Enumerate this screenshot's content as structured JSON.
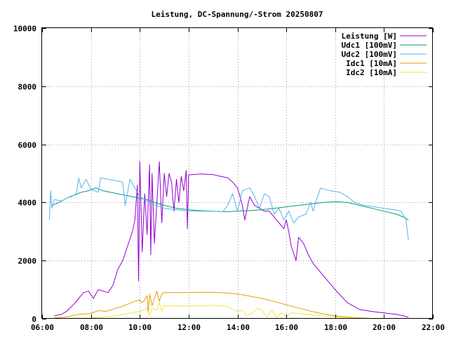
{
  "chart_data": {
    "type": "line",
    "title": "Leistung, DC-Spannung/-Strom 20250807",
    "xlim": [
      6.0,
      22.0
    ],
    "ylim": [
      0,
      10000
    ],
    "xticks": [
      {
        "value": 6,
        "label": "06:00"
      },
      {
        "value": 8,
        "label": "08:00"
      },
      {
        "value": 10,
        "label": "10:00"
      },
      {
        "value": 12,
        "label": "12:00"
      },
      {
        "value": 14,
        "label": "14:00"
      },
      {
        "value": 16,
        "label": "16:00"
      },
      {
        "value": 18,
        "label": "18:00"
      },
      {
        "value": 20,
        "label": "20:00"
      },
      {
        "value": 22,
        "label": "22:00"
      }
    ],
    "yticks": [
      {
        "value": 0,
        "label": "0"
      },
      {
        "value": 2000,
        "label": "2000"
      },
      {
        "value": 4000,
        "label": "4000"
      },
      {
        "value": 6000,
        "label": "6000"
      },
      {
        "value": 8000,
        "label": "8000"
      },
      {
        "value": 10000,
        "label": "10000"
      }
    ],
    "grid": true,
    "legend_position": "top-right",
    "series": [
      {
        "name": "Leistung [W]",
        "color": "#9400d3",
        "points": [
          [
            6.5,
            100
          ],
          [
            6.8,
            150
          ],
          [
            7.0,
            250
          ],
          [
            7.3,
            500
          ],
          [
            7.5,
            700
          ],
          [
            7.7,
            900
          ],
          [
            7.9,
            950
          ],
          [
            8.1,
            700
          ],
          [
            8.3,
            1000
          ],
          [
            8.5,
            950
          ],
          [
            8.7,
            900
          ],
          [
            8.9,
            1150
          ],
          [
            9.1,
            1700
          ],
          [
            9.3,
            2000
          ],
          [
            9.5,
            2500
          ],
          [
            9.7,
            3000
          ],
          [
            9.8,
            3400
          ],
          [
            9.9,
            4600
          ],
          [
            9.95,
            1300
          ],
          [
            10.0,
            5400
          ],
          [
            10.1,
            2300
          ],
          [
            10.2,
            4300
          ],
          [
            10.3,
            2900
          ],
          [
            10.4,
            5300
          ],
          [
            10.45,
            2200
          ],
          [
            10.5,
            5000
          ],
          [
            10.6,
            2600
          ],
          [
            10.7,
            4000
          ],
          [
            10.8,
            5400
          ],
          [
            10.9,
            3300
          ],
          [
            11.0,
            5000
          ],
          [
            11.1,
            4200
          ],
          [
            11.2,
            5000
          ],
          [
            11.3,
            4700
          ],
          [
            11.4,
            3700
          ],
          [
            11.5,
            4800
          ],
          [
            11.6,
            4000
          ],
          [
            11.7,
            4900
          ],
          [
            11.8,
            4400
          ],
          [
            11.9,
            5100
          ],
          [
            11.95,
            3100
          ],
          [
            12.0,
            4950
          ],
          [
            12.5,
            4980
          ],
          [
            13.0,
            4960
          ],
          [
            13.3,
            4900
          ],
          [
            13.6,
            4850
          ],
          [
            13.8,
            4700
          ],
          [
            14.0,
            4500
          ],
          [
            14.2,
            3900
          ],
          [
            14.3,
            3400
          ],
          [
            14.5,
            4200
          ],
          [
            14.7,
            3900
          ],
          [
            14.9,
            3800
          ],
          [
            15.1,
            3700
          ],
          [
            15.3,
            3700
          ],
          [
            15.5,
            3500
          ],
          [
            15.7,
            3300
          ],
          [
            15.9,
            3100
          ],
          [
            16.0,
            3400
          ],
          [
            16.1,
            3000
          ],
          [
            16.2,
            2500
          ],
          [
            16.4,
            2000
          ],
          [
            16.5,
            2800
          ],
          [
            16.7,
            2600
          ],
          [
            16.9,
            2200
          ],
          [
            17.1,
            1900
          ],
          [
            17.5,
            1500
          ],
          [
            18.0,
            1000
          ],
          [
            18.5,
            550
          ],
          [
            19.0,
            320
          ],
          [
            19.5,
            250
          ],
          [
            20.0,
            200
          ],
          [
            20.5,
            150
          ],
          [
            20.8,
            100
          ],
          [
            21.0,
            50
          ]
        ]
      },
      {
        "name": "Udc1 [100mV]",
        "color": "#009e73",
        "points": [
          [
            6.4,
            3900
          ],
          [
            6.7,
            4000
          ],
          [
            7.0,
            4150
          ],
          [
            7.3,
            4250
          ],
          [
            7.6,
            4350
          ],
          [
            7.9,
            4400
          ],
          [
            8.2,
            4500
          ],
          [
            8.5,
            4400
          ],
          [
            8.8,
            4350
          ],
          [
            9.1,
            4300
          ],
          [
            9.4,
            4250
          ],
          [
            9.7,
            4200
          ],
          [
            10.0,
            4150
          ],
          [
            10.3,
            4100
          ],
          [
            10.6,
            4000
          ],
          [
            11.0,
            3900
          ],
          [
            11.5,
            3800
          ],
          [
            12.0,
            3750
          ],
          [
            12.5,
            3720
          ],
          [
            13.0,
            3700
          ],
          [
            13.5,
            3680
          ],
          [
            14.0,
            3700
          ],
          [
            14.5,
            3720
          ],
          [
            15.0,
            3750
          ],
          [
            15.5,
            3800
          ],
          [
            16.0,
            3850
          ],
          [
            16.5,
            3900
          ],
          [
            17.0,
            3950
          ],
          [
            17.5,
            4000
          ],
          [
            18.0,
            4030
          ],
          [
            18.5,
            4000
          ],
          [
            19.0,
            3900
          ],
          [
            19.5,
            3800
          ],
          [
            20.0,
            3700
          ],
          [
            20.5,
            3600
          ],
          [
            20.8,
            3500
          ],
          [
            21.0,
            3400
          ]
        ]
      },
      {
        "name": "Udc2 [100mV]",
        "color": "#56b4e9",
        "points": [
          [
            6.3,
            3400
          ],
          [
            6.35,
            4400
          ],
          [
            6.4,
            3800
          ],
          [
            6.5,
            4100
          ],
          [
            6.8,
            4050
          ],
          [
            7.0,
            4150
          ],
          [
            7.2,
            4200
          ],
          [
            7.4,
            4300
          ],
          [
            7.5,
            4850
          ],
          [
            7.6,
            4500
          ],
          [
            7.8,
            4800
          ],
          [
            8.0,
            4450
          ],
          [
            8.3,
            4350
          ],
          [
            8.4,
            4850
          ],
          [
            8.7,
            4800
          ],
          [
            9.0,
            4750
          ],
          [
            9.3,
            4700
          ],
          [
            9.4,
            3900
          ],
          [
            9.6,
            4800
          ],
          [
            10.0,
            4200
          ],
          [
            10.5,
            3950
          ],
          [
            11.0,
            3800
          ],
          [
            11.5,
            3750
          ],
          [
            12.0,
            3700
          ],
          [
            12.5,
            3700
          ],
          [
            13.0,
            3700
          ],
          [
            13.4,
            3680
          ],
          [
            13.6,
            3900
          ],
          [
            13.8,
            4300
          ],
          [
            14.0,
            3700
          ],
          [
            14.2,
            4400
          ],
          [
            14.5,
            4500
          ],
          [
            14.7,
            4200
          ],
          [
            14.9,
            3800
          ],
          [
            15.1,
            4300
          ],
          [
            15.3,
            4200
          ],
          [
            15.5,
            3600
          ],
          [
            15.7,
            3800
          ],
          [
            15.9,
            3400
          ],
          [
            16.1,
            3700
          ],
          [
            16.3,
            3300
          ],
          [
            16.5,
            3500
          ],
          [
            16.8,
            3600
          ],
          [
            16.9,
            3800
          ],
          [
            17.0,
            4000
          ],
          [
            17.1,
            3700
          ],
          [
            17.2,
            4000
          ],
          [
            17.4,
            4500
          ],
          [
            17.8,
            4400
          ],
          [
            18.2,
            4350
          ],
          [
            18.5,
            4200
          ],
          [
            18.8,
            4000
          ],
          [
            19.2,
            3900
          ],
          [
            19.6,
            3850
          ],
          [
            20.0,
            3800
          ],
          [
            20.4,
            3750
          ],
          [
            20.7,
            3700
          ],
          [
            20.9,
            3400
          ],
          [
            21.0,
            2700
          ]
        ]
      },
      {
        "name": "Idc1 [10mA]",
        "color": "#e69f00",
        "points": [
          [
            6.5,
            30
          ],
          [
            7.0,
            60
          ],
          [
            7.5,
            150
          ],
          [
            8.0,
            180
          ],
          [
            8.3,
            280
          ],
          [
            8.6,
            250
          ],
          [
            8.9,
            330
          ],
          [
            9.2,
            400
          ],
          [
            9.5,
            500
          ],
          [
            9.8,
            600
          ],
          [
            10.0,
            650
          ],
          [
            10.1,
            550
          ],
          [
            10.2,
            650
          ],
          [
            10.3,
            800
          ],
          [
            10.35,
            200
          ],
          [
            10.4,
            850
          ],
          [
            10.5,
            450
          ],
          [
            10.6,
            700
          ],
          [
            10.7,
            950
          ],
          [
            10.8,
            600
          ],
          [
            10.9,
            850
          ],
          [
            11.0,
            900
          ],
          [
            11.5,
            900
          ],
          [
            12.0,
            900
          ],
          [
            12.5,
            910
          ],
          [
            13.0,
            910
          ],
          [
            13.5,
            890
          ],
          [
            14.0,
            850
          ],
          [
            14.5,
            780
          ],
          [
            15.0,
            700
          ],
          [
            15.5,
            600
          ],
          [
            16.0,
            480
          ],
          [
            16.5,
            370
          ],
          [
            17.0,
            260
          ],
          [
            17.5,
            170
          ],
          [
            18.0,
            100
          ],
          [
            18.5,
            60
          ],
          [
            19.0,
            30
          ],
          [
            19.5,
            10
          ],
          [
            20.0,
            0
          ]
        ]
      },
      {
        "name": "Idc2 [10mA]",
        "color": "#f0e442",
        "points": [
          [
            6.5,
            10
          ],
          [
            7.5,
            20
          ],
          [
            8.0,
            30
          ],
          [
            8.5,
            60
          ],
          [
            9.0,
            100
          ],
          [
            9.5,
            180
          ],
          [
            10.0,
            250
          ],
          [
            10.3,
            350
          ],
          [
            10.4,
            100
          ],
          [
            10.5,
            350
          ],
          [
            10.7,
            300
          ],
          [
            10.8,
            550
          ],
          [
            10.9,
            250
          ],
          [
            11.0,
            450
          ],
          [
            11.5,
            440
          ],
          [
            12.0,
            440
          ],
          [
            12.5,
            450
          ],
          [
            13.0,
            460
          ],
          [
            13.5,
            440
          ],
          [
            14.0,
            250
          ],
          [
            14.2,
            300
          ],
          [
            14.4,
            100
          ],
          [
            14.6,
            200
          ],
          [
            14.8,
            350
          ],
          [
            15.0,
            300
          ],
          [
            15.2,
            50
          ],
          [
            15.4,
            300
          ],
          [
            15.6,
            50
          ],
          [
            15.8,
            200
          ],
          [
            16.0,
            100
          ],
          [
            16.2,
            200
          ],
          [
            16.5,
            180
          ],
          [
            17.0,
            140
          ],
          [
            17.5,
            100
          ],
          [
            18.0,
            70
          ],
          [
            18.5,
            40
          ],
          [
            19.0,
            20
          ],
          [
            19.5,
            5
          ],
          [
            20.0,
            0
          ]
        ]
      }
    ]
  }
}
